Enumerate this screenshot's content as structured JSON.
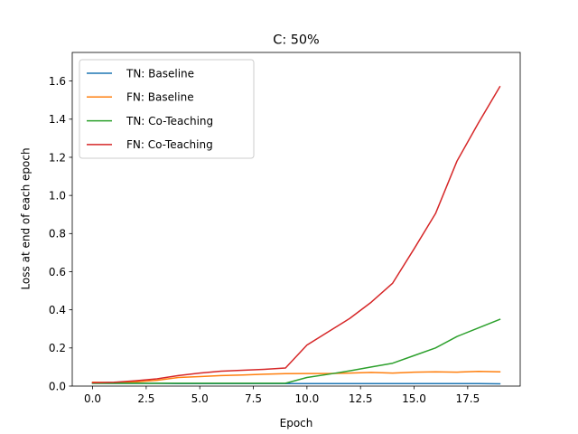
{
  "chart_data": {
    "type": "line",
    "title": "C: 50%",
    "xlabel": "Epoch",
    "ylabel": "Loss at end of each epoch",
    "xlim": [
      -0.95,
      19.95
    ],
    "ylim": [
      0.0,
      1.75
    ],
    "xticks": [
      0.0,
      2.5,
      5.0,
      7.5,
      10.0,
      12.5,
      15.0,
      17.5
    ],
    "xtick_labels": [
      "0.0",
      "2.5",
      "5.0",
      "7.5",
      "10.0",
      "12.5",
      "15.0",
      "17.5"
    ],
    "yticks": [
      0.0,
      0.2,
      0.4,
      0.6,
      0.8,
      1.0,
      1.2,
      1.4,
      1.6
    ],
    "ytick_labels": [
      "0.0",
      "0.2",
      "0.4",
      "0.6",
      "0.8",
      "1.0",
      "1.2",
      "1.4",
      "1.6"
    ],
    "grid": false,
    "legend_position": "top-left",
    "x": [
      0,
      1,
      2,
      3,
      4,
      5,
      6,
      7,
      8,
      9,
      10,
      11,
      12,
      13,
      14,
      15,
      16,
      17,
      18,
      19
    ],
    "series": [
      {
        "name": "TN: Baseline",
        "color": "#1f77b4",
        "values": [
          0.015,
          0.014,
          0.014,
          0.014,
          0.013,
          0.013,
          0.013,
          0.013,
          0.013,
          0.013,
          0.013,
          0.013,
          0.013,
          0.013,
          0.013,
          0.013,
          0.013,
          0.013,
          0.013,
          0.012
        ]
      },
      {
        "name": "FN: Baseline",
        "color": "#ff7f0e",
        "values": [
          0.02,
          0.018,
          0.022,
          0.03,
          0.045,
          0.05,
          0.055,
          0.058,
          0.062,
          0.065,
          0.066,
          0.066,
          0.068,
          0.072,
          0.068,
          0.073,
          0.075,
          0.073,
          0.077,
          0.075
        ]
      },
      {
        "name": "TN: Co-Teaching",
        "color": "#2ca02c",
        "values": [
          0.015,
          0.015,
          0.015,
          0.015,
          0.015,
          0.015,
          0.015,
          0.015,
          0.015,
          0.015,
          0.045,
          0.062,
          0.08,
          0.1,
          0.12,
          0.16,
          0.2,
          0.26,
          0.305,
          0.35
        ]
      },
      {
        "name": "FN: Co-Teaching",
        "color": "#d62728",
        "values": [
          0.018,
          0.02,
          0.028,
          0.038,
          0.055,
          0.068,
          0.078,
          0.083,
          0.088,
          0.095,
          0.215,
          0.285,
          0.355,
          0.44,
          0.54,
          0.72,
          0.905,
          1.18,
          1.38,
          1.57
        ]
      }
    ]
  }
}
